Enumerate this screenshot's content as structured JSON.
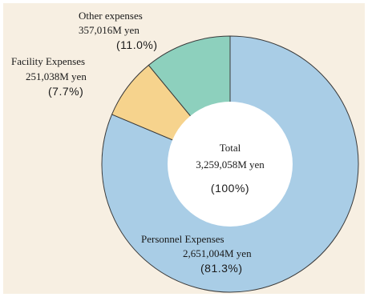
{
  "chart_data": {
    "type": "pie",
    "style": "donut",
    "slices": [
      {
        "label": "Personnel Expenses",
        "value_text": "2,651,004M yen",
        "value": 2651004,
        "unit": "M yen",
        "percent": 81.3,
        "percent_text": "(81.3%)",
        "color": "#a9cde6"
      },
      {
        "label": "Facility Expenses",
        "value_text": "251,038M yen",
        "value": 251038,
        "unit": "M yen",
        "percent": 7.7,
        "percent_text": "(7.7%)",
        "color": "#f6d38d"
      },
      {
        "label": "Other expenses",
        "value_text": "357,016M yen",
        "value": 357016,
        "unit": "M yen",
        "percent": 11.0,
        "percent_text": "(11.0%)",
        "color": "#8dd0bd"
      }
    ],
    "center": {
      "label": "Total",
      "value_text": "3,259,058M yen",
      "percent_text": "(100%)"
    },
    "start_angle": "top, clockwise",
    "legend": "none",
    "background": "#f7efe2"
  }
}
